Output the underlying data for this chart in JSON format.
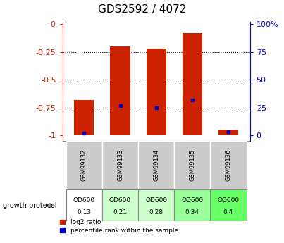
{
  "title": "GDS2592 / 4072",
  "samples": [
    "GSM99132",
    "GSM99133",
    "GSM99134",
    "GSM99135",
    "GSM99136"
  ],
  "log2_ratio": [
    -0.68,
    -0.2,
    -0.22,
    -0.08,
    -0.95
  ],
  "log2_bottom": [
    -1.0,
    -1.0,
    -1.0,
    -1.0,
    -1.0
  ],
  "percentile": [
    2,
    27,
    25,
    32,
    3
  ],
  "growth_protocol_label": "growth protocol",
  "od600_labels": [
    [
      "OD600",
      "0.13"
    ],
    [
      "OD600",
      "0.21"
    ],
    [
      "OD600",
      "0.28"
    ],
    [
      "OD600",
      "0.34"
    ],
    [
      "OD600",
      "0.4"
    ]
  ],
  "od600_colors": [
    "#ffffff",
    "#ccffcc",
    "#ccffcc",
    "#99ff99",
    "#66ff66"
  ],
  "bar_color": "#cc2200",
  "percentile_color": "#0000cc",
  "left_axis_color": "#cc2200",
  "right_axis_color": "#0000cc",
  "yticks_left": [
    0,
    -0.25,
    -0.5,
    -0.75,
    -1.0
  ],
  "yticks_left_labels": [
    "-0",
    "-0.25",
    "-0.5",
    "-0.75",
    "-1"
  ],
  "yticks_right": [
    100,
    75,
    50,
    25,
    0
  ],
  "yticks_right_labels": [
    "100%",
    "75",
    "50",
    "25",
    "0"
  ],
  "ylim": [
    -1.05,
    0.02
  ],
  "background_color": "#ffffff",
  "plot_bg": "#ffffff",
  "grid_color": "#000000",
  "sample_bg": "#cccccc",
  "bar_width": 0.55,
  "legend_red": "log2 ratio",
  "legend_blue": "percentile rank within the sample"
}
